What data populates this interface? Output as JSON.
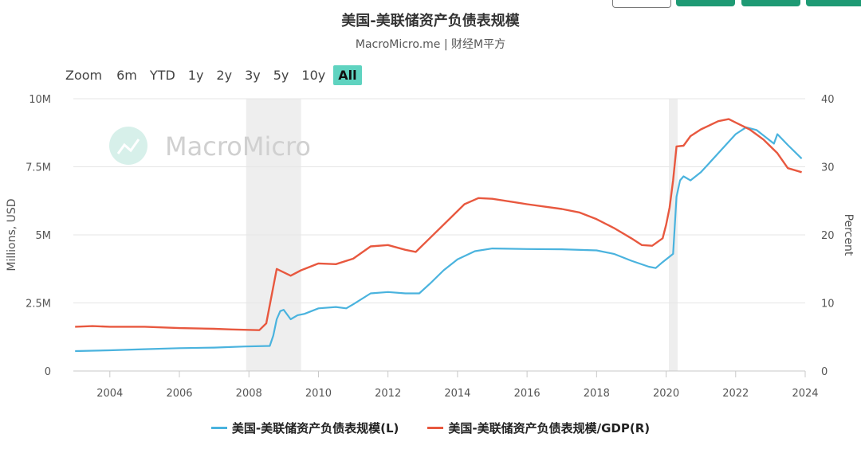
{
  "title": "美国-美联储资产负债表规模",
  "subtitle": "MacroMicro.me | 财经M平方",
  "watermark": "MacroMicro",
  "range_selector": {
    "zoom_label": "Zoom",
    "buttons": [
      "6m",
      "YTD",
      "1y",
      "2y",
      "3y",
      "5y",
      "10y",
      "All"
    ],
    "active": "All"
  },
  "colors": {
    "left_series": "#4ab3de",
    "right_series": "#e8583f",
    "recession": "#eeeeee",
    "green_button": "#1e9a74",
    "active_range": "#5fd3c0"
  },
  "chart_data": {
    "type": "line",
    "x_range": [
      2002.95,
      2024.0
    ],
    "x_ticks": [
      "2004",
      "2006",
      "2008",
      "2010",
      "2012",
      "2014",
      "2016",
      "2018",
      "2020",
      "2022",
      "2024"
    ],
    "x_tick_values": [
      2004,
      2006,
      2008,
      2010,
      2012,
      2014,
      2016,
      2018,
      2020,
      2022,
      2024
    ],
    "y_left": {
      "label": "Millions, USD",
      "range": [
        0,
        10000000
      ],
      "ticks": [
        0,
        2500000,
        5000000,
        7500000,
        10000000
      ],
      "tick_labels": [
        "0",
        "2.5M",
        "5M",
        "7.5M",
        "10M"
      ]
    },
    "y_right": {
      "label": "Percent",
      "range": [
        0,
        40
      ],
      "ticks": [
        0,
        10,
        20,
        30,
        40
      ],
      "tick_labels": [
        "0",
        "10",
        "20",
        "30",
        "40"
      ]
    },
    "recession_bands": [
      [
        2007.92,
        2009.5
      ],
      [
        2020.08,
        2020.33
      ]
    ],
    "series": [
      {
        "name": "美国-美联储资产负债表规模(L)",
        "axis": "left",
        "points": [
          [
            2003.0,
            730000
          ],
          [
            2004.0,
            760000
          ],
          [
            2005.0,
            800000
          ],
          [
            2006.0,
            840000
          ],
          [
            2007.0,
            860000
          ],
          [
            2007.9,
            900000
          ],
          [
            2008.6,
            920000
          ],
          [
            2008.7,
            1300000
          ],
          [
            2008.8,
            1900000
          ],
          [
            2008.9,
            2200000
          ],
          [
            2009.0,
            2250000
          ],
          [
            2009.2,
            1900000
          ],
          [
            2009.4,
            2050000
          ],
          [
            2009.6,
            2100000
          ],
          [
            2010.0,
            2300000
          ],
          [
            2010.5,
            2350000
          ],
          [
            2010.8,
            2300000
          ],
          [
            2011.0,
            2450000
          ],
          [
            2011.5,
            2850000
          ],
          [
            2012.0,
            2900000
          ],
          [
            2012.5,
            2850000
          ],
          [
            2012.9,
            2850000
          ],
          [
            2013.2,
            3200000
          ],
          [
            2013.6,
            3700000
          ],
          [
            2014.0,
            4100000
          ],
          [
            2014.5,
            4400000
          ],
          [
            2015.0,
            4500000
          ],
          [
            2016.0,
            4480000
          ],
          [
            2017.0,
            4470000
          ],
          [
            2018.0,
            4430000
          ],
          [
            2018.5,
            4300000
          ],
          [
            2019.0,
            4050000
          ],
          [
            2019.5,
            3830000
          ],
          [
            2019.7,
            3780000
          ],
          [
            2019.9,
            4000000
          ],
          [
            2020.1,
            4200000
          ],
          [
            2020.2,
            4300000
          ],
          [
            2020.3,
            6400000
          ],
          [
            2020.4,
            7000000
          ],
          [
            2020.5,
            7150000
          ],
          [
            2020.7,
            7000000
          ],
          [
            2021.0,
            7300000
          ],
          [
            2021.5,
            8000000
          ],
          [
            2022.0,
            8700000
          ],
          [
            2022.3,
            8950000
          ],
          [
            2022.6,
            8850000
          ],
          [
            2023.0,
            8450000
          ],
          [
            2023.1,
            8350000
          ],
          [
            2023.2,
            8700000
          ],
          [
            2023.5,
            8300000
          ],
          [
            2023.9,
            7800000
          ]
        ]
      },
      {
        "name": "美国-美联储资产负债表规模/GDP(R)",
        "axis": "right",
        "points": [
          [
            2003.0,
            6.5
          ],
          [
            2003.5,
            6.6
          ],
          [
            2004.0,
            6.5
          ],
          [
            2005.0,
            6.5
          ],
          [
            2006.0,
            6.3
          ],
          [
            2007.0,
            6.2
          ],
          [
            2007.5,
            6.1
          ],
          [
            2008.3,
            6.0
          ],
          [
            2008.5,
            7.0
          ],
          [
            2008.8,
            15.0
          ],
          [
            2009.2,
            14.0
          ],
          [
            2009.5,
            14.8
          ],
          [
            2010.0,
            15.8
          ],
          [
            2010.5,
            15.7
          ],
          [
            2011.0,
            16.5
          ],
          [
            2011.5,
            18.3
          ],
          [
            2012.0,
            18.5
          ],
          [
            2012.5,
            17.8
          ],
          [
            2012.8,
            17.5
          ],
          [
            2013.2,
            19.5
          ],
          [
            2013.8,
            22.5
          ],
          [
            2014.2,
            24.5
          ],
          [
            2014.6,
            25.4
          ],
          [
            2015.0,
            25.3
          ],
          [
            2015.5,
            24.9
          ],
          [
            2016.0,
            24.5
          ],
          [
            2017.0,
            23.8
          ],
          [
            2017.5,
            23.3
          ],
          [
            2018.0,
            22.3
          ],
          [
            2018.5,
            21.0
          ],
          [
            2019.0,
            19.5
          ],
          [
            2019.3,
            18.5
          ],
          [
            2019.6,
            18.4
          ],
          [
            2019.9,
            19.5
          ],
          [
            2020.0,
            21.5
          ],
          [
            2020.1,
            24.0
          ],
          [
            2020.2,
            28.0
          ],
          [
            2020.3,
            33.0
          ],
          [
            2020.5,
            33.1
          ],
          [
            2020.7,
            34.5
          ],
          [
            2021.0,
            35.5
          ],
          [
            2021.5,
            36.7
          ],
          [
            2021.8,
            37.0
          ],
          [
            2022.0,
            36.5
          ],
          [
            2022.4,
            35.5
          ],
          [
            2022.8,
            34.0
          ],
          [
            2023.0,
            33.0
          ],
          [
            2023.2,
            32.0
          ],
          [
            2023.5,
            29.8
          ],
          [
            2023.9,
            29.2
          ]
        ]
      }
    ],
    "legend": [
      "美国-美联储资产负债表规模(L)",
      "美国-美联储资产负债表规模/GDP(R)"
    ],
    "legend_position": "bottom-center",
    "grid": "horizontal"
  }
}
